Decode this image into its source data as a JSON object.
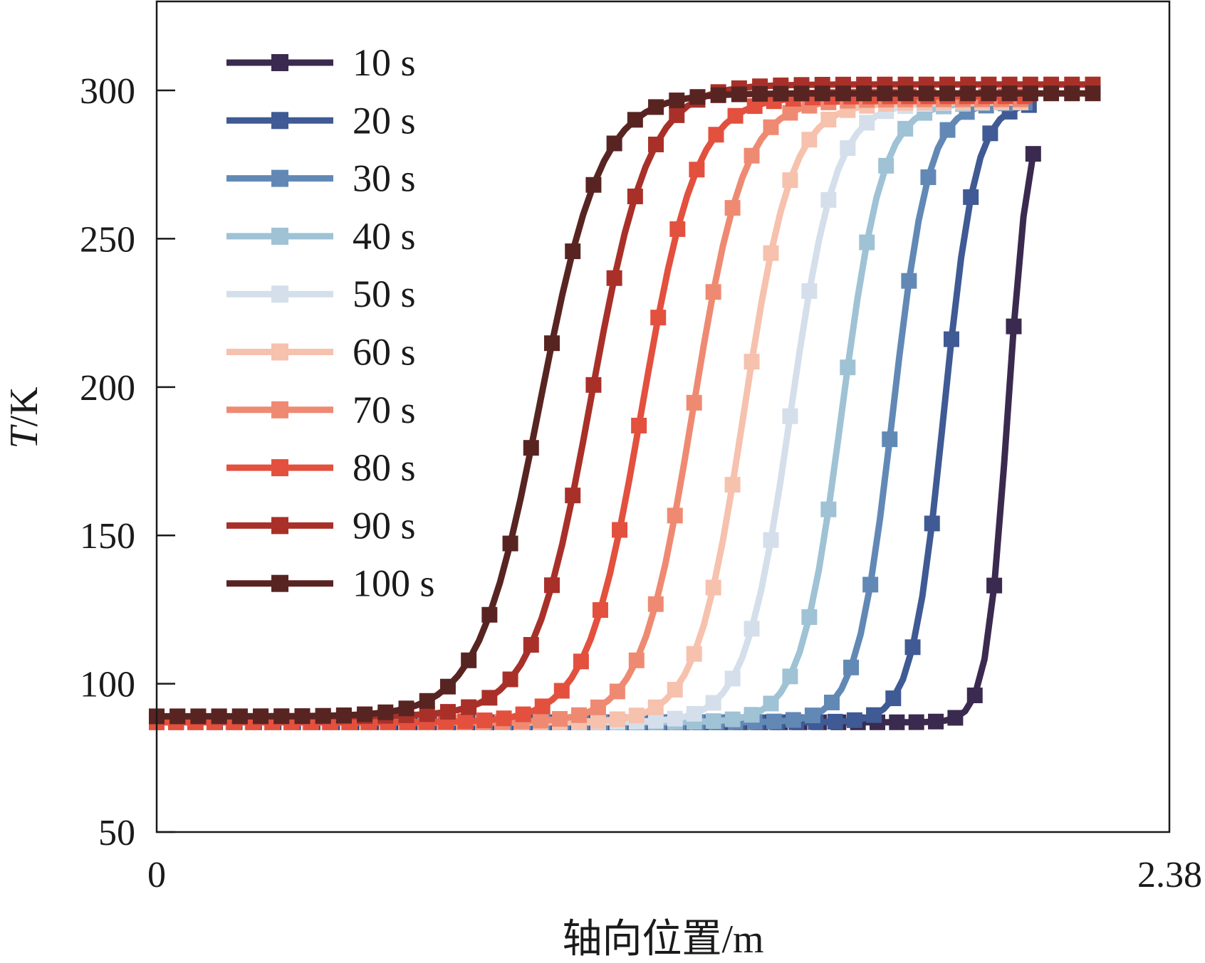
{
  "chart_data": {
    "type": "line",
    "title": "",
    "xlabel": "轴向位置/m",
    "ylabel_italic": "T",
    "ylabel_rest": "/K",
    "xlim": [
      0,
      2.38
    ],
    "ylim": [
      50,
      330
    ],
    "x_ticks": [
      {
        "value": 0,
        "label": "0"
      },
      {
        "value": 2.38,
        "label": "2.38"
      }
    ],
    "y_ticks": [
      {
        "value": 50,
        "label": "50"
      },
      {
        "value": 100,
        "label": "100"
      },
      {
        "value": 150,
        "label": "150"
      },
      {
        "value": 200,
        "label": "200"
      },
      {
        "value": 250,
        "label": "250"
      },
      {
        "value": 300,
        "label": "300"
      }
    ],
    "legend_position": "top-left",
    "series": [
      {
        "name": "10 s",
        "color": "#3b2a4f",
        "x50": 2.0,
        "width": 0.025,
        "bottom": 87,
        "top": 296,
        "x_end": 2.06
      },
      {
        "name": "20 s",
        "color": "#3f5a94",
        "x50": 1.85,
        "width": 0.037,
        "bottom": 87,
        "top": 296,
        "x_end": 2.05
      },
      {
        "name": "30 s",
        "color": "#6289b5",
        "x50": 1.73,
        "width": 0.042,
        "bottom": 87,
        "top": 296,
        "x_end": 2.04
      },
      {
        "name": "40 s",
        "color": "#9fc2d5",
        "x50": 1.61,
        "width": 0.048,
        "bottom": 87,
        "top": 296,
        "x_end": 2.03
      },
      {
        "name": "50 s",
        "color": "#d4dfeb",
        "x50": 1.49,
        "width": 0.053,
        "bottom": 87,
        "top": 296,
        "x_end": 2.03
      },
      {
        "name": "60 s",
        "color": "#f6c1ad",
        "x50": 1.38,
        "width": 0.056,
        "bottom": 87,
        "top": 296,
        "x_end": 2.03
      },
      {
        "name": "70 s",
        "color": "#ef8a72",
        "x50": 1.26,
        "width": 0.06,
        "bottom": 87,
        "top": 297,
        "x_end": 2.03
      },
      {
        "name": "80 s",
        "color": "#e3503e",
        "x50": 1.14,
        "width": 0.064,
        "bottom": 87,
        "top": 298,
        "x_end": 2.04
      },
      {
        "name": "90 s",
        "color": "#a93029",
        "x50": 1.02,
        "width": 0.068,
        "bottom": 89,
        "top": 302,
        "x_end": 2.2
      },
      {
        "name": "100 s",
        "color": "#582422",
        "x50": 0.9,
        "width": 0.072,
        "bottom": 89,
        "top": 299,
        "x_end": 2.2
      }
    ]
  }
}
